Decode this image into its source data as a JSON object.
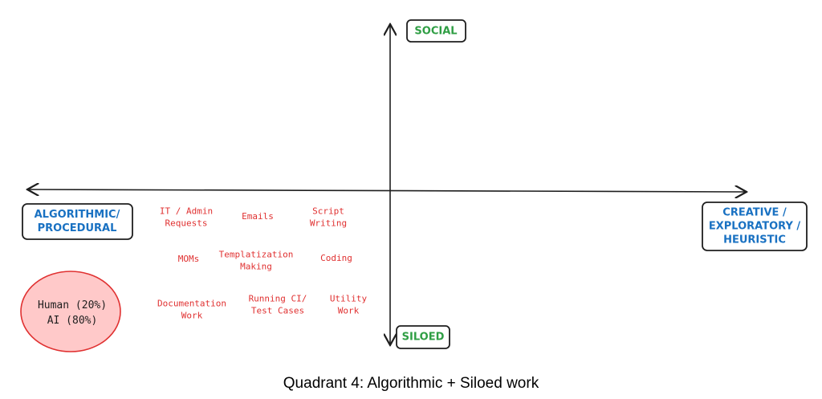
{
  "axes": {
    "top": [
      "SOCIAL"
    ],
    "bottom": [
      "SILOED"
    ],
    "left": [
      "ALGORITHMIC/",
      "PROCEDURAL"
    ],
    "right": [
      "CREATIVE /",
      "EXPLORATORY /",
      "HEURISTIC"
    ]
  },
  "tasks": [
    [
      "IT / Admin",
      "Requests"
    ],
    [
      "Emails"
    ],
    [
      "Script",
      "Writing"
    ],
    [
      "MOMs"
    ],
    [
      "Templatization",
      "Making"
    ],
    [
      "Coding"
    ],
    [
      "Documentation",
      "Work"
    ],
    [
      "Running CI/",
      "Test Cases"
    ],
    [
      "Utility",
      "Work"
    ]
  ],
  "split": [
    "Human (20%)",
    "AI (80%)"
  ],
  "caption": "Quadrant 4: Algorithmic + Siloed work"
}
